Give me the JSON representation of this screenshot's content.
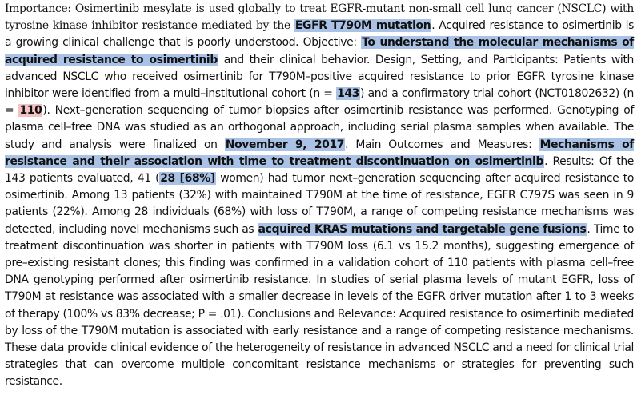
{
  "abstract": {
    "s1a": "Importance: Osimertinib mesylate is used globally to treat EGFR-mutant non-small cell lung cancer (NSCLC) with tyrosine kinase inhibitor resistance mediated by the ",
    "h1": "EGFR T790M mutation",
    "s1b": ". Acquired resistance to osimertinib is a growing clinical challenge that is poorly understood. Objective: ",
    "h2": "To understand the molecular mechanisms of acquired resistance to osimertinib",
    "s2": " and their clinical behavior. Design, Setting, and Participants: Patients with advanced NSCLC who received osimertinib for T790M–positive acquired resistance to prior EGFR tyrosine kinase inhibitor were identified from a multi–institutional cohort (n = ",
    "h3": "143",
    "s3": ") and a confirmatory trial cohort (NCT01802632) (n = ",
    "h4": "110",
    "s4": "). Next–generation sequencing of tumor biopsies after osimertinib resistance was performed. Genotyping of plasma cell–free DNA was studied as an orthogonal approach, including serial plasma samples when available. The study and analysis were finalized on ",
    "h5": "November 9, 2017",
    "s5": ". Main Outcomes and Measures: ",
    "h6": "Mechanisms of resistance and their association with time to treatment discontinuation on osimertinib",
    "s6": ". Results: Of the 143 patients evaluated, 41 (",
    "h7": "28 [68%]",
    "s7": " women) had tumor next–generation sequencing after acquired resistance to osimertinib. Among 13 patients (32%) with maintained T790M at the time of resistance, EGFR C797S was seen in 9 patients (22%). Among 28 individuals (68%) with loss of T790M, a range of competing resistance mechanisms was detected, including novel mechanisms such as ",
    "h8": "acquired KRAS mutations and targetable gene fusions",
    "s8": ". Time to treatment discontinuation was shorter in patients with T790M loss (6.1 vs 15.2 months), suggesting emergence of pre–existing resistant clones; this finding was confirmed in a validation cohort of 110 patients with plasma cell–free DNA genotyping performed after osimertinib resistance. In studies of serial plasma levels of mutant EGFR, loss of T790M at resistance was associated with a smaller decrease in levels of the EGFR driver mutation after 1 to 3 weeks of therapy (100% vs 83% decrease; P = .01). Conclusions and Relevance: Acquired resistance to osimertinib mediated by loss of the T790M mutation is associated with early resistance and a range of competing resistance mechanisms. These data provide clinical evidence of the heterogeneity of resistance in advanced NSCLC and a need for clinical trial strategies that can overcome multiple concomitant resistance mechanisms or strategies for preventing such resistance."
  },
  "colors": {
    "highlight_blue": "#a9c2e6",
    "highlight_red": "#f5c2c2"
  }
}
